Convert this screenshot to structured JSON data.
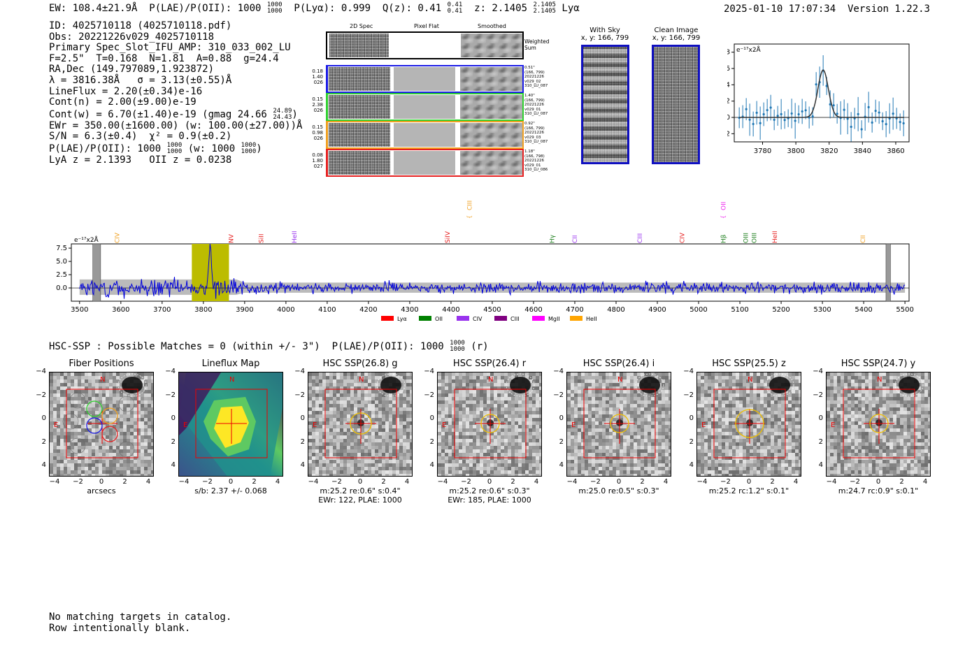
{
  "header": {
    "left": "EW: 108.4±21.9Å  P(LAE)/P(OII): 1000",
    "plae_num": "1000",
    "plae_den": "1000",
    "plya": "P(Lyα): 0.999",
    "qz": "Q(z): 0.41",
    "qz_up": "0.41",
    "qz_dn": "0.41",
    "z": "z: 2.1405",
    "z_up": "2.1405",
    "z_dn": "2.1405",
    "line": "Lyα",
    "right": "2025-01-10 17:07:34  Version 1.22.3"
  },
  "info": {
    "id": "ID: 4025710118 (4025710118.pdf)",
    "obs": "Obs: 20221226v029_4025710118",
    "primary": "Primary Spec_Slot_IFU_AMP: 310_033_002_LU",
    "params": "F=2.5\"  T=0.168  N=1.81  A=0.88  g=24.4",
    "radec": "RA,Dec (149.797089,1.923872)",
    "lambda": "λ = 3816.38Å   σ = 3.13(±0.55)Å",
    "lineflux": "LineFlux = 2.20(±0.34)e-16",
    "contn": "Cont(n) = 2.00(±9.00)e-19",
    "contw": "Cont(w) = 6.70(±1.40)e-19 (gmag 24.66",
    "gmag_up": "24.89",
    "gmag_dn": "24.43",
    "ewr": "EWr = 350.00(±1600.00) (w: 100.00(±27.00))Å",
    "sn": "S/N = 6.3(±0.4)  χ² = 0.9(±0.2)",
    "plae": "P(LAE)/P(OII): 1000",
    "plae_a_up": "1000",
    "plae_a_dn": "1000",
    "plae_w": "(w: 1000",
    "plae_b_up": "1000",
    "plae_b_dn": "1000",
    "lyaz": "LyA z = 2.1393   OII z = 0.0238"
  },
  "stamps": {
    "col_headers": [
      "2D Spec",
      "Pixel Flat",
      "Smoothed"
    ],
    "weighted_sum": "Weighted\nSum",
    "fibers": [
      {
        "left": [
          "0.18",
          "1.40",
          "026"
        ],
        "right": [
          "0.51\"",
          "(166, 799)",
          "20221226",
          "v029_02",
          "310_LU_087"
        ],
        "color": "#1a1ae6"
      },
      {
        "left": [
          "0.15",
          "2.38",
          "026"
        ],
        "right": [
          "1.40\"",
          "(166, 799)",
          "20221226",
          "v029_01",
          "310_LU_087"
        ],
        "color": "#2fd02f"
      },
      {
        "left": [
          "0.15",
          "0.98",
          "026"
        ],
        "right": [
          "0.92\"",
          "(166, 799)",
          "20221226",
          "v029_03",
          "310_LU_087"
        ],
        "color": "#f0a020"
      },
      {
        "left": [
          "0.08",
          "1.80",
          "027"
        ],
        "right": [
          "1.18\"",
          "(166, 798)",
          "20221226",
          "v029_01",
          "310_LU_086"
        ],
        "color": "#e62020"
      }
    ]
  },
  "sky": {
    "with_sky_title": "With Sky",
    "with_sky_xy": "x, y: 166, 799",
    "clean_title": "Clean Image",
    "clean_xy": "x, y: 166, 799"
  },
  "zoom_plot": {
    "ylabel": "e⁻¹⁷x2Å",
    "xticks": [
      "3780",
      "3800",
      "3820",
      "3840",
      "3860"
    ],
    "yticks": [
      "−2",
      "0",
      "2",
      "4",
      "6",
      "8"
    ]
  },
  "full_spectrum": {
    "ylabel": "e⁻¹⁷x2Å",
    "yticks": [
      "7.5",
      "5.0",
      "2.5",
      "0.0"
    ],
    "xticks": [
      "3500",
      "3600",
      "3700",
      "3800",
      "3900",
      "4000",
      "4100",
      "4200",
      "4300",
      "4400",
      "4500",
      "4600",
      "4700",
      "4800",
      "4900",
      "5000",
      "5100",
      "5200",
      "5300",
      "5400",
      "5500"
    ],
    "lines": [
      {
        "name": "CIV",
        "color": "#f0a020",
        "high": false
      },
      {
        "name": "NV",
        "color": "#e62020",
        "high": false
      },
      {
        "name": "SiII",
        "color": "#e62020",
        "high": false
      },
      {
        "name": "HeII",
        "color": "#9933ee",
        "high": false
      },
      {
        "name": "SiIV",
        "color": "#e62020",
        "high": false
      },
      {
        "name": "CIII",
        "color": "#f0a020",
        "high": true
      },
      {
        "name": "Hγ",
        "color": "#208020",
        "high": false
      },
      {
        "name": "CII",
        "color": "#9933ee",
        "high": false
      },
      {
        "name": "CIII",
        "color": "#9933ee",
        "high": false
      },
      {
        "name": "CIV",
        "color": "#e62020",
        "high": false
      },
      {
        "name": "Hβ",
        "color": "#208020",
        "high": false
      },
      {
        "name": "OII",
        "color": "#ee22ee",
        "high": true
      },
      {
        "name": "OIII",
        "color": "#208020",
        "high": false
      },
      {
        "name": "OIII",
        "color": "#208020",
        "high": false
      },
      {
        "name": "HeII",
        "color": "#e62020",
        "high": false
      },
      {
        "name": "CII",
        "color": "#f0a020",
        "high": false
      }
    ],
    "legend": [
      {
        "label": "Lyα",
        "color": "#ff0000"
      },
      {
        "label": "OII",
        "color": "#008000"
      },
      {
        "label": "CIV",
        "color": "#9933ee"
      },
      {
        "label": "CIII",
        "color": "#800080"
      },
      {
        "label": "MgII",
        "color": "#ff00ff"
      },
      {
        "label": "HeII",
        "color": "#ffa500"
      }
    ]
  },
  "hsc": {
    "title": "HSC-SSP : Possible Matches = 0 (within +/- 3\")  P(LAE)/P(OII): 1000",
    "title_up": "1000",
    "title_dn": "1000",
    "title_tail": "(r)",
    "axis_ticks": [
      "−4",
      "−2",
      "0",
      "2",
      "4"
    ],
    "panels": [
      {
        "title": "Fiber Positions",
        "label1": "arcsecs",
        "label2": "",
        "type": "fiber"
      },
      {
        "title": "Lineflux Map",
        "label1": "s/b: 2.37 +/- 0.068",
        "label2": "",
        "type": "flux"
      },
      {
        "title": "HSC SSP(26.8) g",
        "label1": "m:25.2  re:0.6\"  s:0.4\"",
        "label2": "EWr: 122, PLAE: 1000",
        "type": "hsc"
      },
      {
        "title": "HSC SSP(26.4) r",
        "label1": "m:25.2  re:0.6\"  s:0.3\"",
        "label2": "EWr: 185, PLAE: 1000",
        "type": "hsc"
      },
      {
        "title": "HSC SSP(26.4) i",
        "label1": "m:25.0  re:0.5\"  s:0.3\"",
        "label2": "",
        "type": "hsc"
      },
      {
        "title": "HSC SSP(25.5) z",
        "label1": "m:25.2  rc:1.2\"  s:0.1\"",
        "label2": "",
        "type": "hsc"
      },
      {
        "title": "HSC SSP(24.7) y",
        "label1": "m:24.7  rc:0.9\"  s:0.1\"",
        "label2": "",
        "type": "hsc"
      }
    ],
    "north_label": "N",
    "east_label": "E"
  },
  "bottom": {
    "line1": "No matching targets in catalog.",
    "line2": "Row intentionally blank."
  }
}
